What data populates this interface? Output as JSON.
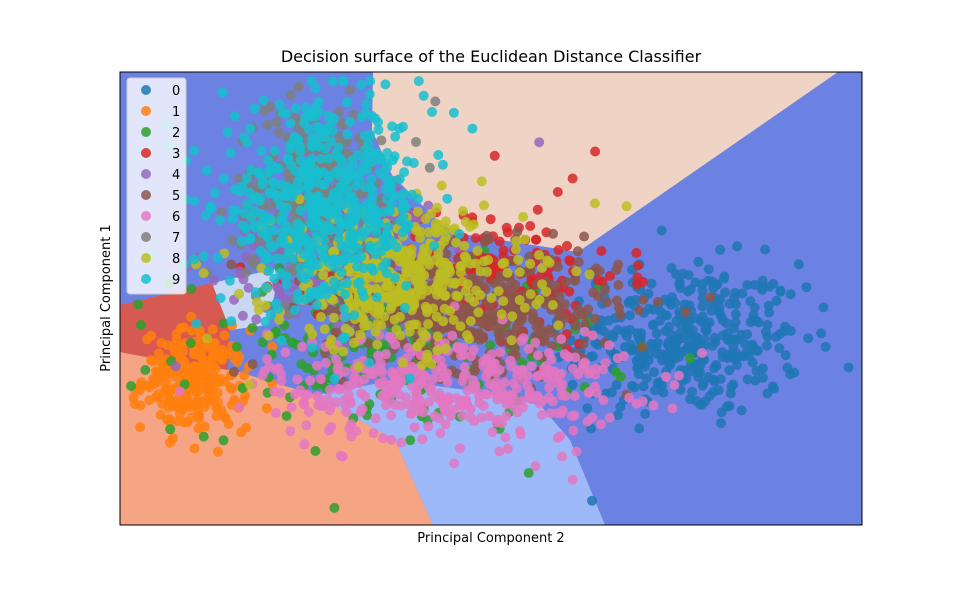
{
  "chart_data": {
    "type": "scatter",
    "title": "Decision surface of the Euclidean Distance Classifier",
    "xlabel": "Principal Component 2",
    "ylabel": "Principal Component 1",
    "xlim": [
      -1,
      1
    ],
    "ylim": [
      -1,
      1
    ],
    "ticks_visible": false,
    "grid": false,
    "legend_position": "top-left",
    "background_regions": [
      {
        "class": "0",
        "color": "#6b82e3"
      },
      {
        "class": "1",
        "color": "#f6a584"
      },
      {
        "class": "3",
        "color": "#d65a52"
      },
      {
        "class": "8",
        "color": "#efd4c6"
      },
      {
        "class": "9",
        "color": "#c8d8f2"
      },
      {
        "class": "6",
        "color": "#9db9fa"
      }
    ],
    "series": [
      {
        "name": "0",
        "color": "#1f77b4",
        "center": [
          0.52,
          -0.18
        ],
        "spread": [
          0.16,
          0.17
        ],
        "n": 380,
        "outliers": [
          [
            0.46,
            0.3
          ],
          [
            0.4,
            0.15
          ],
          [
            0.85,
            0.05
          ],
          [
            0.62,
            -0.55
          ]
        ]
      },
      {
        "name": "1",
        "color": "#ff7f0e",
        "center": [
          -0.8,
          -0.36
        ],
        "spread": [
          0.07,
          0.11
        ],
        "n": 240,
        "outliers": [
          [
            -0.66,
            -0.57
          ],
          [
            -0.72,
            -0.52
          ]
        ]
      },
      {
        "name": "2",
        "color": "#2ca02c",
        "center": [
          -0.28,
          -0.23
        ],
        "spread": [
          0.28,
          0.18
        ],
        "n": 180,
        "outliers": [
          [
            0.07,
            -0.45
          ],
          [
            0.05,
            -0.5
          ]
        ]
      },
      {
        "name": "3",
        "color": "#d62728",
        "center": [
          -0.05,
          0.1
        ],
        "spread": [
          0.2,
          0.16
        ],
        "n": 220,
        "outliers": [
          [
            0.22,
            0.53
          ],
          [
            0.18,
            0.47
          ],
          [
            0.01,
            0.63
          ]
        ]
      },
      {
        "name": "4",
        "color": "#9467bd",
        "center": [
          -0.38,
          0.17
        ],
        "spread": [
          0.18,
          0.18
        ],
        "n": 150,
        "outliers": [
          [
            -0.85,
            -0.3
          ],
          [
            0.13,
            0.69
          ]
        ]
      },
      {
        "name": "5",
        "color": "#8c564b",
        "center": [
          -0.05,
          -0.05
        ],
        "spread": [
          0.2,
          0.13
        ],
        "n": 420,
        "outliers": [
          [
            -0.7,
            0.15
          ],
          [
            0.18,
            0.14
          ]
        ]
      },
      {
        "name": "6",
        "color": "#e377c2",
        "center": [
          -0.12,
          -0.38
        ],
        "spread": [
          0.24,
          0.12
        ],
        "n": 400,
        "outliers": [
          [
            0.22,
            -0.8
          ],
          [
            0.12,
            -0.74
          ],
          [
            0.08,
            -0.6
          ]
        ]
      },
      {
        "name": "7",
        "color": "#7f7f7f",
        "center": [
          -0.47,
          0.46
        ],
        "spread": [
          0.11,
          0.2
        ],
        "n": 300,
        "outliers": [
          [
            -0.38,
            0.92
          ],
          [
            -0.15,
            0.87
          ],
          [
            -0.53,
            0.8
          ]
        ]
      },
      {
        "name": "8",
        "color": "#bcbd22",
        "center": [
          -0.25,
          0.08
        ],
        "spread": [
          0.17,
          0.15
        ],
        "n": 420,
        "outliers": [
          [
            0.28,
            0.42
          ],
          [
            0.23,
            0.12
          ],
          [
            -0.65,
            -0.38
          ]
        ]
      },
      {
        "name": "9",
        "color": "#17becf",
        "center": [
          -0.45,
          0.4
        ],
        "spread": [
          0.14,
          0.22
        ],
        "n": 520,
        "outliers": [
          [
            -0.1,
            0.82
          ],
          [
            -0.05,
            0.75
          ],
          [
            -0.38,
            0.78
          ],
          [
            -0.7,
            -0.1
          ]
        ]
      }
    ]
  }
}
